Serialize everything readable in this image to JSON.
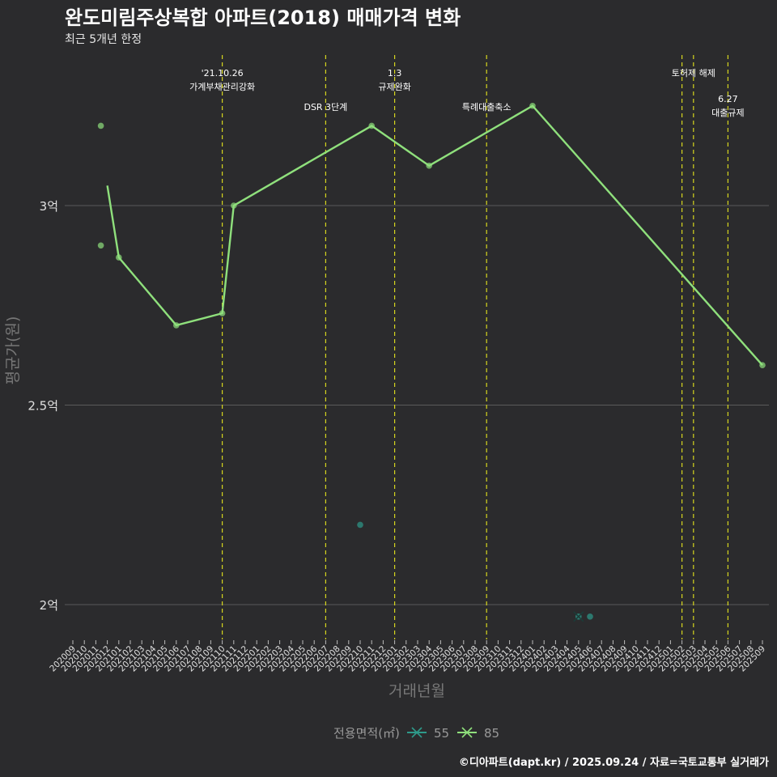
{
  "colors": {
    "background": "#2b2b2d",
    "grid": "#5a5a5a",
    "series_55": "#2e9a8a",
    "series_85": "#8fe07c",
    "event_line": "#d6d61e"
  },
  "chart_data": {
    "type": "line",
    "title": "완도미림주상복합 아파트(2018) 매매가격 변화",
    "subtitle": "최근 5개년 한정",
    "xlabel": "거래년월",
    "ylabel": "평균가(원)",
    "ylim": [
      1.9,
      3.5
    ],
    "y_ticks": [
      {
        "value": 3.0,
        "label": "3억"
      },
      {
        "value": 2.5,
        "label": "2.5억"
      },
      {
        "value": 2.0,
        "label": "2억"
      }
    ],
    "categories": [
      "202009",
      "202010",
      "202011",
      "202012",
      "202101",
      "202102",
      "202103",
      "202104",
      "202105",
      "202106",
      "202107",
      "202108",
      "202109",
      "202110",
      "202111",
      "202112",
      "202201",
      "202202",
      "202203",
      "202204",
      "202205",
      "202206",
      "202207",
      "202208",
      "202209",
      "202210",
      "202211",
      "202212",
      "202301",
      "202302",
      "202303",
      "202304",
      "202305",
      "202306",
      "202307",
      "202308",
      "202309",
      "202310",
      "202311",
      "202312",
      "202401",
      "202402",
      "202403",
      "202404",
      "202405",
      "202406",
      "202407",
      "202408",
      "202409",
      "202410",
      "202411",
      "202412",
      "202501",
      "202502",
      "202503",
      "202504",
      "202505",
      "202506",
      "202507",
      "202508",
      "202509"
    ],
    "legend": {
      "title": "전용면적(㎡)",
      "placement": "bottom",
      "entries": [
        {
          "label": "55",
          "color": "#2e9a8a"
        },
        {
          "label": "85",
          "color": "#8fe07c"
        }
      ]
    },
    "series": [
      {
        "name": "55",
        "line": [],
        "points": [
          {
            "x": "202210",
            "y": 2.2
          },
          {
            "x": "202405",
            "y": 1.97
          },
          {
            "x": "202406",
            "y": 1.97
          }
        ]
      },
      {
        "name": "85",
        "line": [
          {
            "x": "202012",
            "y": 3.05
          },
          {
            "x": "202101",
            "y": 2.87
          },
          {
            "x": "202106",
            "y": 2.7
          },
          {
            "x": "202110",
            "y": 2.73
          },
          {
            "x": "202111",
            "y": 3.0
          },
          {
            "x": "202211",
            "y": 3.2
          },
          {
            "x": "202304",
            "y": 3.1
          },
          {
            "x": "202401",
            "y": 3.25
          },
          {
            "x": "202509",
            "y": 2.6
          }
        ],
        "points": [
          {
            "x": "202012",
            "y": 3.2
          },
          {
            "x": "202012",
            "y": 2.9
          },
          {
            "x": "202101",
            "y": 2.87
          },
          {
            "x": "202106",
            "y": 2.7
          },
          {
            "x": "202110",
            "y": 2.73
          },
          {
            "x": "202111",
            "y": 3.0
          },
          {
            "x": "202211",
            "y": 3.2
          },
          {
            "x": "202304",
            "y": 3.1
          },
          {
            "x": "202401",
            "y": 3.25
          },
          {
            "x": "202509",
            "y": 2.6
          }
        ]
      }
    ],
    "events": [
      {
        "x": "202110",
        "lines": [
          "'21.10.26",
          "가계부채관리강화"
        ],
        "level": 1
      },
      {
        "x": "202207",
        "lines": [
          "DSR 3단계"
        ],
        "level": 2
      },
      {
        "x": "202301",
        "lines": [
          "1.3",
          "규제완화"
        ],
        "level": 1
      },
      {
        "x": "202309",
        "lines": [
          "특례대출축소"
        ],
        "level": 2
      },
      {
        "x": "202502",
        "lines": [],
        "level": 1
      },
      {
        "x": "202503",
        "lines": [
          "토허제 해제"
        ],
        "level": 1
      },
      {
        "x": "202506",
        "lines": [
          "6.27",
          "대출규제"
        ],
        "level": 3
      }
    ],
    "caption": "©디아파트(dapt.kr) / 2025.09.24 / 자료=국토교통부 실거래가"
  }
}
